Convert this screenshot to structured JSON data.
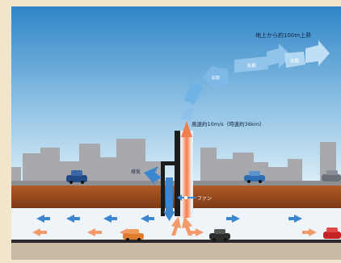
{
  "labels": {
    "top_note": "地上から約100m上昇",
    "plume_1": "拡散",
    "plume_2": "拡散",
    "plume_3": "拡散",
    "speed": "風速約10m/s（時速約36km）",
    "exhaust": "排気",
    "fan": "ファン"
  },
  "colors": {
    "sky_top": "#2f86c8",
    "sky_bottom": "#d9ecf6",
    "ground": "#9a4a1e",
    "tunnel": "#eef4f8",
    "blue_arrow": "#3b86cf",
    "orange_arrow": "#f39a6b",
    "building": "#a7a9ad"
  },
  "icons": {
    "car": "car-icon",
    "fan": "fan-icon"
  }
}
